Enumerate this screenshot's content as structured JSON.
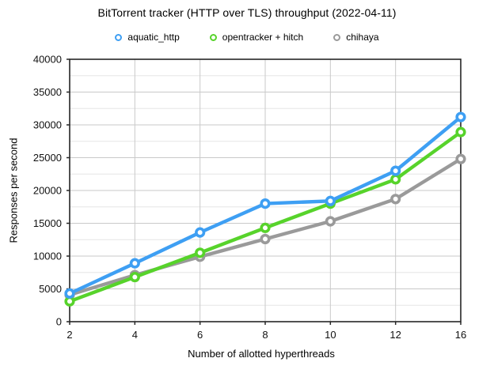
{
  "chart_data": {
    "type": "line",
    "title": "BitTorrent tracker (HTTP over TLS) throughput (2022-04-11)",
    "xlabel": "Number of allotted hyperthreads",
    "ylabel": "Responses per second",
    "categories": [
      "2",
      "4",
      "6",
      "8",
      "10",
      "12",
      "16"
    ],
    "ylim": [
      0,
      40000
    ],
    "y_ticks": [
      0,
      5000,
      10000,
      15000,
      20000,
      25000,
      30000,
      35000,
      40000
    ],
    "y_minor_step": 2500,
    "grid": "horizontal major+minor, vertical at category ticks",
    "legend_position": "top-center",
    "marker": "open-circle",
    "series": [
      {
        "name": "aquatic_http",
        "color": "#3E9FF3",
        "values": [
          4300,
          8900,
          13600,
          18000,
          18400,
          23000,
          31200
        ]
      },
      {
        "name": "opentracker + hitch",
        "color": "#57D32B",
        "values": [
          3100,
          6800,
          10500,
          14300,
          18000,
          21700,
          28900
        ]
      },
      {
        "name": "chihaya",
        "color": "#9A9A9A",
        "values": [
          4100,
          7100,
          9900,
          12600,
          15300,
          18700,
          24800
        ]
      }
    ],
    "colors": {
      "axis": "#262626",
      "grid_major": "#C9C9C9",
      "grid_minor": "#E5E5E5",
      "background": "#FFFFFF",
      "text": "#111111"
    }
  }
}
